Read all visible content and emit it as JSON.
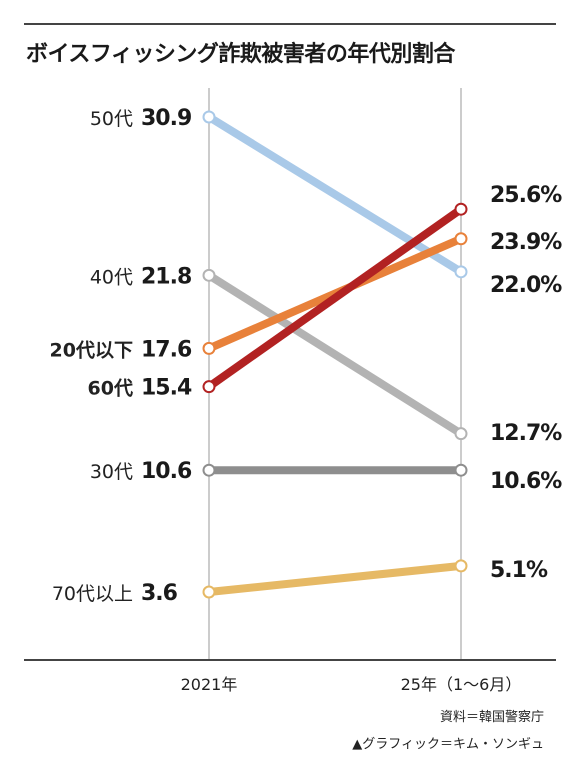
{
  "title": "ボイスフィッシング詐欺被害者の年代別割合",
  "source": "資料＝韓国警察庁",
  "credit": "▲グラフィック＝キム・ソンギュ",
  "chart_data": {
    "type": "line",
    "title": "ボイスフィッシング詐欺被害者の年代別割合",
    "categories": [
      "2021年",
      "25年（1～6月）"
    ],
    "unit": "%",
    "grid": false,
    "series": [
      {
        "name": "50代",
        "values": [
          30.9,
          22.0
        ],
        "start_label": "30.9",
        "end_label": "22.0%",
        "color": "#a9c9e8",
        "bold_name": false
      },
      {
        "name": "40代",
        "values": [
          21.8,
          12.7
        ],
        "start_label": "21.8",
        "end_label": "12.7%",
        "color": "#b3b3b3",
        "bold_name": false
      },
      {
        "name": "20代以下",
        "values": [
          17.6,
          23.9
        ],
        "start_label": "17.6",
        "end_label": "23.9%",
        "color": "#e8813a",
        "bold_name": true
      },
      {
        "name": "60代",
        "values": [
          15.4,
          25.6
        ],
        "start_label": "15.4",
        "end_label": "25.6%",
        "color": "#b22222",
        "bold_name": true
      },
      {
        "name": "30代",
        "values": [
          10.6,
          10.6
        ],
        "start_label": "10.6",
        "end_label": "10.6%",
        "color": "#8e8e8e",
        "bold_name": false
      },
      {
        "name": "70代以上",
        "values": [
          3.6,
          5.1
        ],
        "start_label": "3.6",
        "end_label": "5.1%",
        "color": "#e6b965",
        "bold_name": false
      }
    ]
  }
}
